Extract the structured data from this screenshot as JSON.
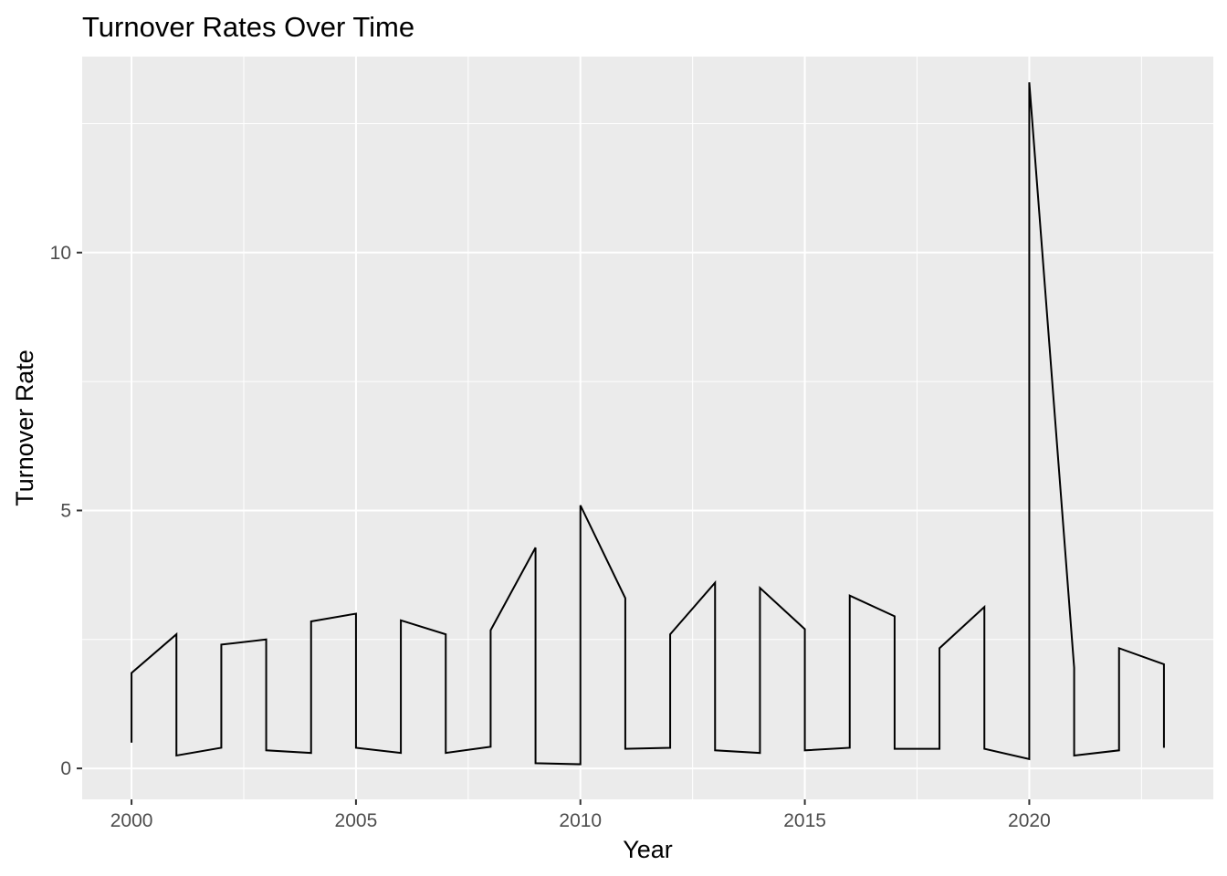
{
  "chart_data": {
    "type": "line",
    "title": "Turnover Rates Over Time",
    "xlabel": "Year",
    "ylabel": "Turnover Rate",
    "xlim": [
      1998.9,
      2024.1
    ],
    "ylim": [
      -0.6,
      13.8
    ],
    "x_ticks": [
      2000,
      2005,
      2010,
      2015,
      2020
    ],
    "y_ticks": [
      0,
      5,
      10
    ],
    "grid": true,
    "legend": "none",
    "colors": {
      "panel": "#ebebeb",
      "grid": "#ffffff",
      "line": "#000000",
      "tick_text": "#4d4d4d"
    },
    "series": [
      {
        "x": [
          2000,
          2000,
          2001,
          2001,
          2002,
          2002,
          2003,
          2003,
          2004,
          2004,
          2005,
          2005,
          2006,
          2006,
          2007,
          2007,
          2008,
          2008,
          2009,
          2009,
          2010,
          2010,
          2011,
          2011,
          2012,
          2012,
          2013,
          2013,
          2014,
          2014,
          2015,
          2015,
          2016,
          2016,
          2017,
          2017,
          2018,
          2018,
          2019,
          2019,
          2020,
          2020,
          2021,
          2021,
          2022,
          2022,
          2023,
          2023
        ],
        "y": [
          0.5,
          1.85,
          2.6,
          0.25,
          0.4,
          2.4,
          2.5,
          0.35,
          0.3,
          2.85,
          3.0,
          0.4,
          0.3,
          2.87,
          2.6,
          0.3,
          0.42,
          2.68,
          4.28,
          0.1,
          0.08,
          5.1,
          3.3,
          0.38,
          0.4,
          2.6,
          3.6,
          0.35,
          0.3,
          3.5,
          2.7,
          0.35,
          0.4,
          3.35,
          2.95,
          0.38,
          0.38,
          2.33,
          3.13,
          0.38,
          0.18,
          13.3,
          1.95,
          0.25,
          0.35,
          2.33,
          2.02,
          0.4
        ]
      }
    ]
  }
}
